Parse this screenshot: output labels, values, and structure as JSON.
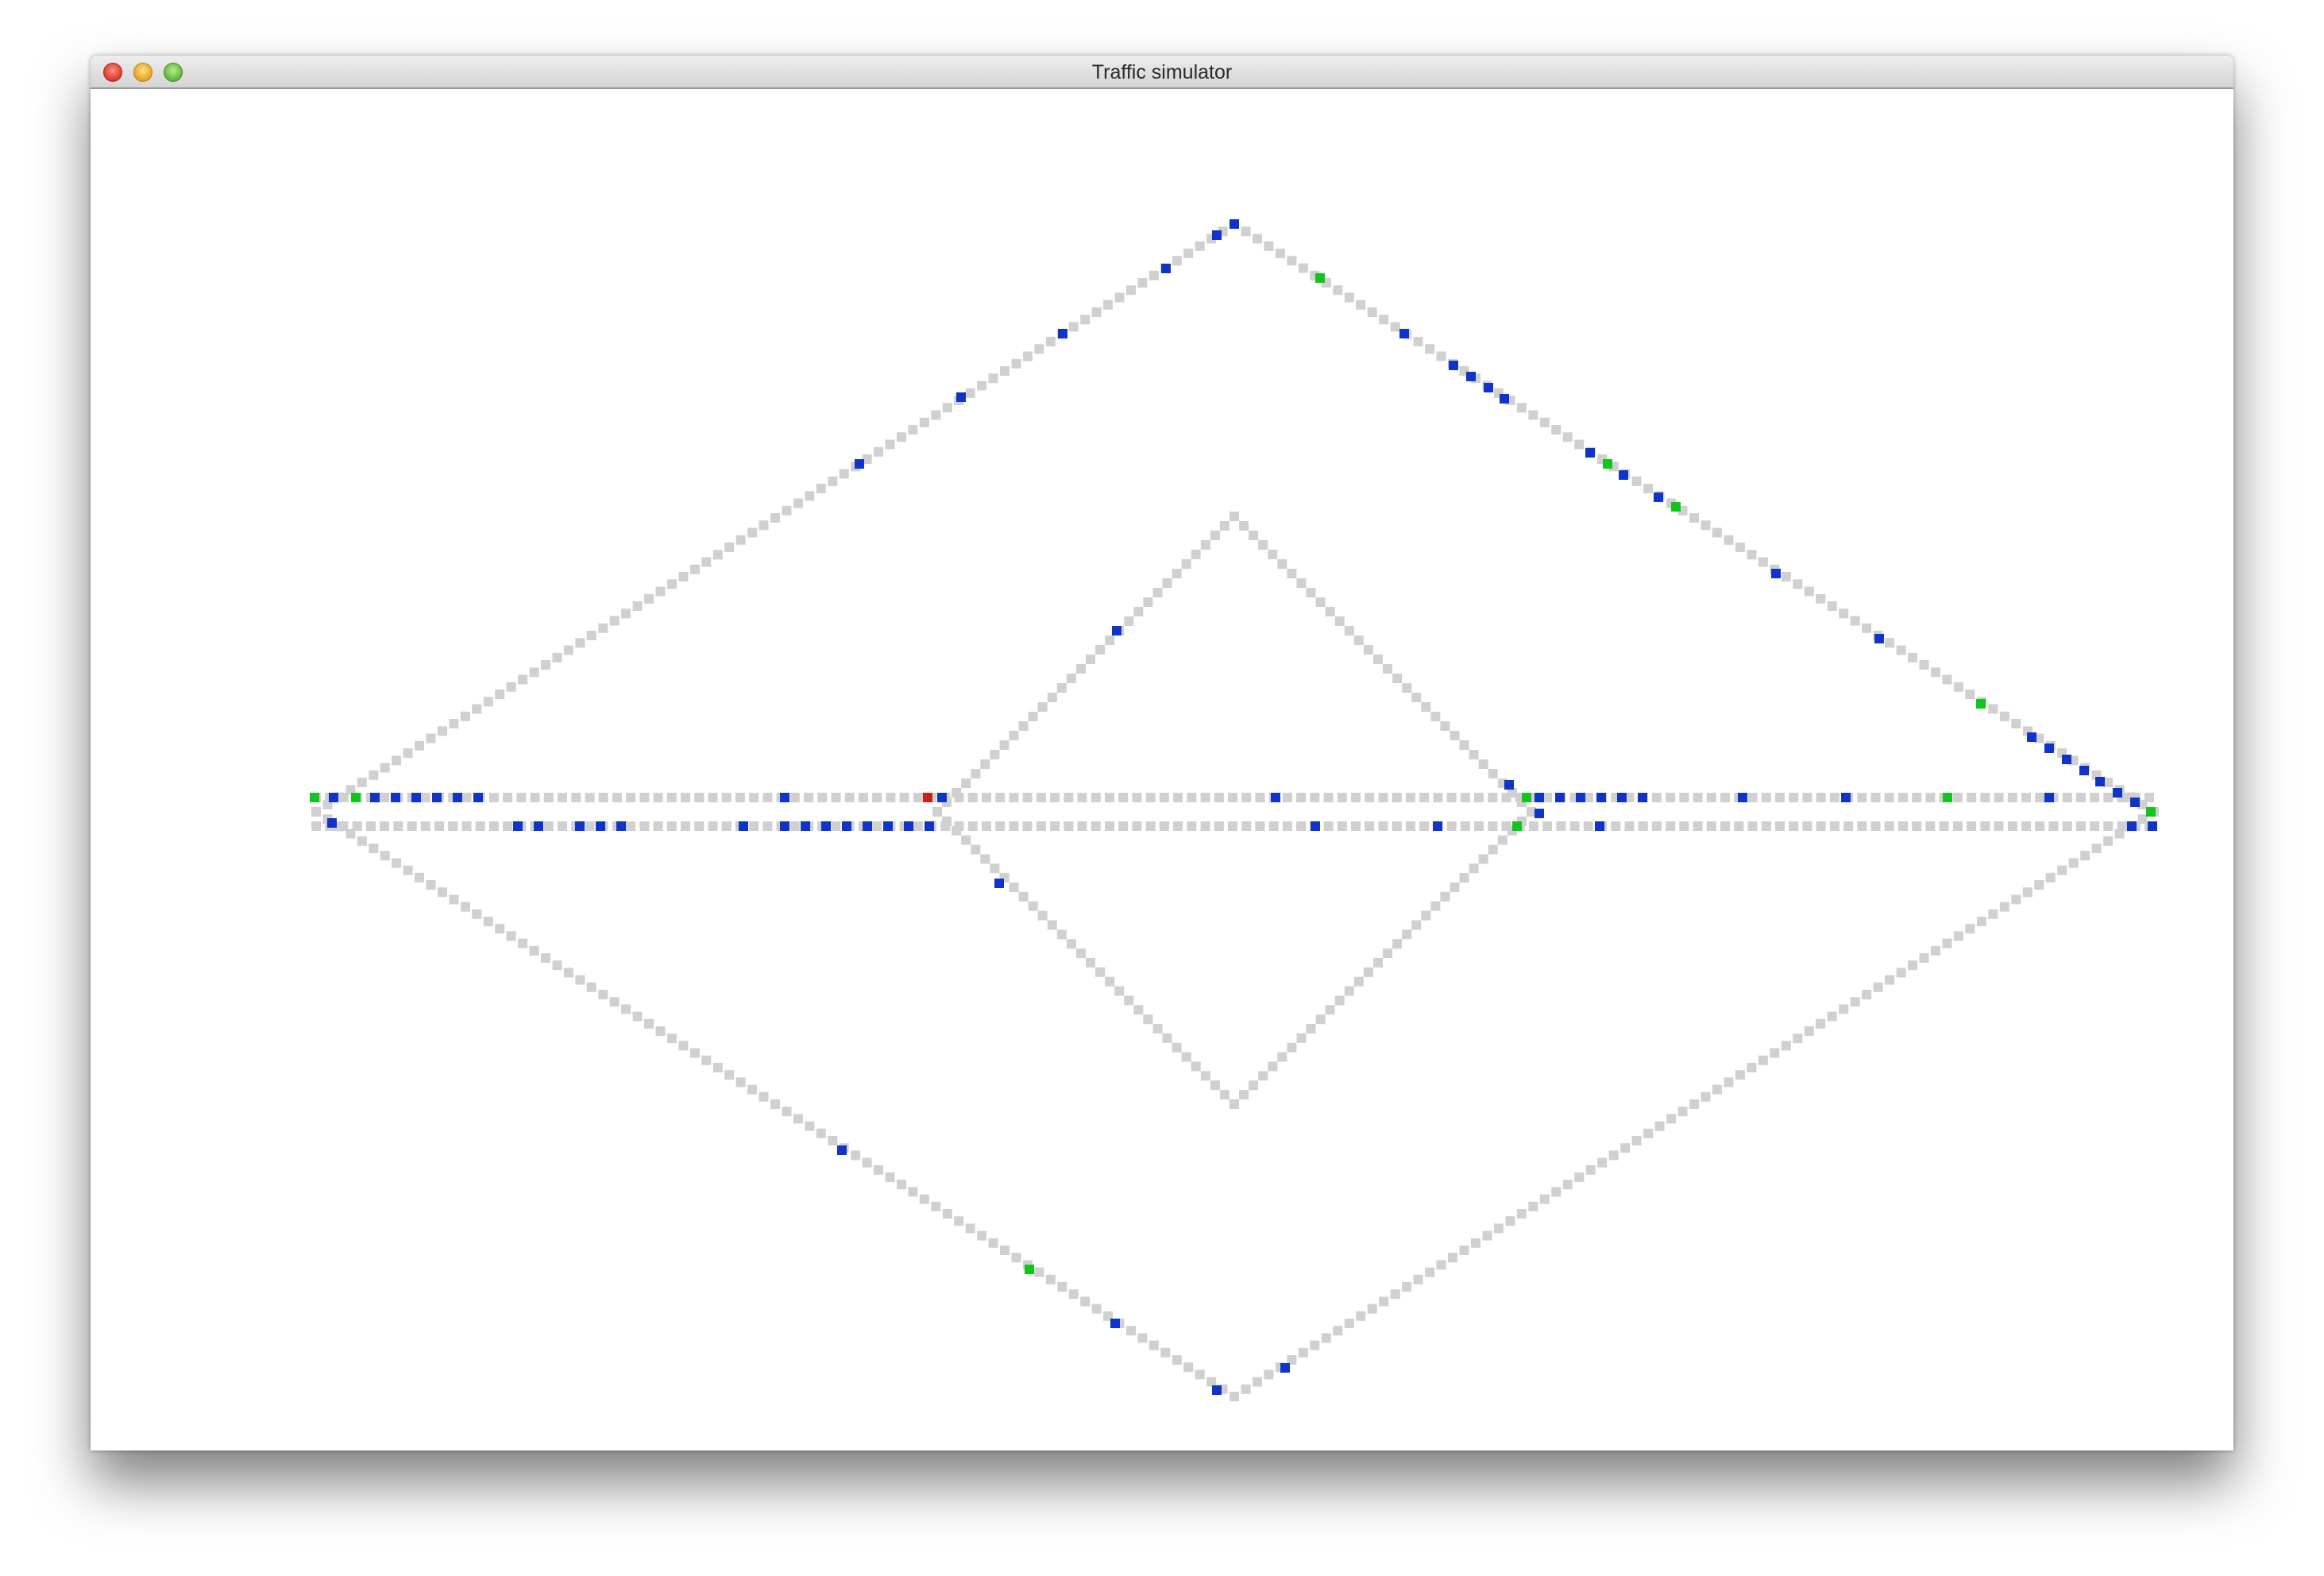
{
  "window": {
    "title": "Traffic simulator"
  },
  "colors": {
    "road": "#d0d0d0",
    "car_normal": "#1034c8",
    "car_green": "#12c41e",
    "car_red": "#c8221c"
  },
  "legend_note": "",
  "cars": {
    "blue_count": 74,
    "green_count": 11,
    "red_count": 1
  }
}
